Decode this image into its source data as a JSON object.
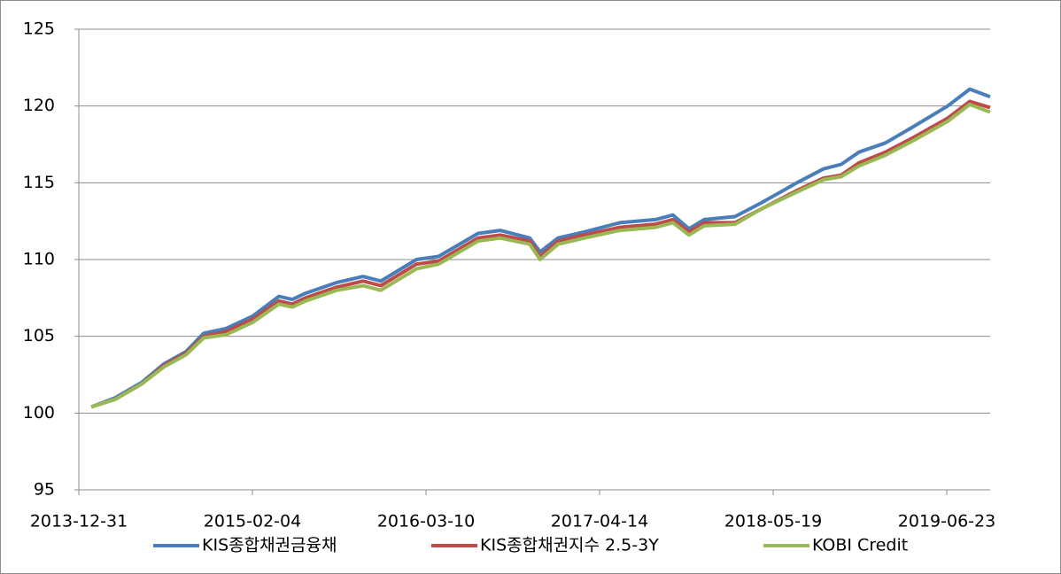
{
  "chart_data": {
    "type": "line",
    "x": [
      "2014-01-29",
      "2014-03-25",
      "2014-05-25",
      "2014-07-15",
      "2014-09-04",
      "2014-10-15",
      "2014-12-05",
      "2015-02-04",
      "2015-04-06",
      "2015-05-07",
      "2015-06-06",
      "2015-08-17",
      "2015-10-17",
      "2015-11-27",
      "2016-02-17",
      "2016-04-08",
      "2016-07-08",
      "2016-08-28",
      "2016-11-04",
      "2016-11-28",
      "2017-01-08",
      "2017-03-10",
      "2017-05-31",
      "2017-08-21",
      "2017-09-30",
      "2017-11-06",
      "2017-12-11",
      "2018-02-20",
      "2018-04-22",
      "2018-07-13",
      "2018-09-12",
      "2018-10-23",
      "2018-12-03",
      "2019-02-02",
      "2019-04-04",
      "2019-06-25",
      "2019-08-15",
      "2019-10-01"
    ],
    "series": [
      {
        "name": "KIS종합채권금융채",
        "color": "#4a7ebb",
        "values": [
          100.4,
          101.0,
          102.0,
          103.2,
          104.0,
          105.2,
          105.5,
          106.3,
          107.6,
          107.4,
          107.8,
          108.5,
          108.9,
          108.6,
          110.0,
          110.2,
          111.7,
          111.9,
          111.4,
          110.5,
          111.4,
          111.8,
          112.4,
          112.6,
          112.9,
          112.0,
          112.6,
          112.8,
          113.7,
          115.0,
          115.9,
          116.2,
          117.0,
          117.6,
          118.6,
          120.0,
          121.1,
          120.6
        ]
      },
      {
        "name": "KIS종합채권지수 2.5-3Y",
        "color": "#be4b48",
        "values": [
          100.4,
          100.9,
          101.9,
          103.1,
          103.9,
          105.0,
          105.3,
          106.1,
          107.3,
          107.1,
          107.5,
          108.2,
          108.6,
          108.3,
          109.7,
          109.9,
          111.4,
          111.6,
          111.2,
          110.2,
          111.2,
          111.6,
          112.1,
          112.3,
          112.6,
          111.8,
          112.4,
          112.4,
          113.3,
          114.5,
          115.3,
          115.5,
          116.3,
          117.0,
          117.9,
          119.2,
          120.3,
          119.9
        ]
      },
      {
        "name": "KOBI Credit",
        "color": "#98b954",
        "values": [
          100.4,
          100.9,
          101.9,
          103.0,
          103.8,
          104.9,
          105.1,
          105.9,
          107.1,
          106.9,
          107.3,
          108.0,
          108.3,
          108.0,
          109.4,
          109.7,
          111.2,
          111.4,
          111.0,
          110.0,
          111.0,
          111.4,
          111.9,
          112.1,
          112.4,
          111.6,
          112.2,
          112.3,
          113.3,
          114.4,
          115.2,
          115.4,
          116.1,
          116.8,
          117.7,
          119.0,
          120.1,
          119.6
        ]
      }
    ],
    "xlim": [
      "2013-12-31",
      "2019-10-01"
    ],
    "xticks": [
      "2013-12-31",
      "2015-02-04",
      "2016-03-10",
      "2017-04-14",
      "2018-05-19",
      "2019-06-23"
    ],
    "ylim": [
      95,
      125
    ],
    "yticks": [
      95,
      100,
      105,
      110,
      115,
      120,
      125
    ],
    "grid": true,
    "legend": "bottom"
  }
}
